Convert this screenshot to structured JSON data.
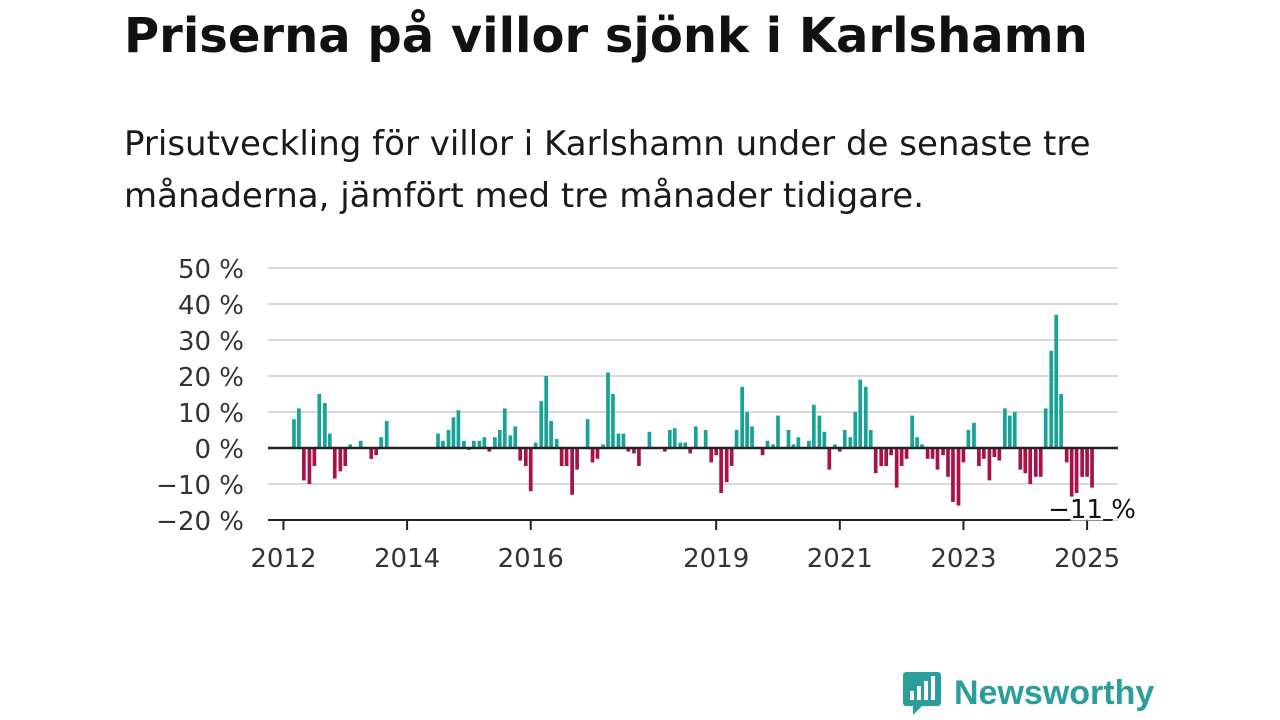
{
  "header": {
    "title": "Priserna på villor sjönk i Karlshamn",
    "subtitle": "Prisutveckling för villor i Karlshamn under de senaste tre månaderna, jämfört med tre månader tidigare."
  },
  "brand": {
    "name": "Newsworthy",
    "icon": "newsworthy-logo-icon",
    "color": "#2a9e9a"
  },
  "colors": {
    "positive": "#17a398",
    "negative": "#a8124a",
    "grid": "#d9d9d9",
    "axis": "#222222"
  },
  "chart_data": {
    "type": "bar",
    "title": "Priserna på villor sjönk i Karlshamn",
    "ylim": [
      -20,
      50
    ],
    "yticks": [
      50,
      40,
      30,
      20,
      10,
      0,
      -10,
      -20
    ],
    "ytick_labels": [
      "50 %",
      "40 %",
      "30 %",
      "20 %",
      "10 %",
      "0 %",
      "−10 %",
      "−20 %"
    ],
    "xticks": [
      2012,
      2014,
      2016,
      2019,
      2021,
      2023,
      2025
    ],
    "xlim": [
      2011.75,
      2025.5
    ],
    "grid": true,
    "annotation": {
      "label": "−11 %",
      "target": "last"
    },
    "points": [
      [
        2012.17,
        8
      ],
      [
        2012.25,
        11
      ],
      [
        2012.33,
        -9
      ],
      [
        2012.42,
        -10
      ],
      [
        2012.5,
        -5
      ],
      [
        2012.58,
        15
      ],
      [
        2012.67,
        12.5
      ],
      [
        2012.75,
        4
      ],
      [
        2012.83,
        -8.5
      ],
      [
        2012.92,
        -6.5
      ],
      [
        2013.0,
        -5
      ],
      [
        2013.08,
        1
      ],
      [
        2013.25,
        2
      ],
      [
        2013.42,
        -3
      ],
      [
        2013.5,
        -2
      ],
      [
        2013.58,
        3
      ],
      [
        2013.67,
        7.5
      ],
      [
        2014.5,
        4
      ],
      [
        2014.58,
        2
      ],
      [
        2014.67,
        5
      ],
      [
        2014.75,
        8.5
      ],
      [
        2014.83,
        10.5
      ],
      [
        2014.92,
        2
      ],
      [
        2015.0,
        -0.5
      ],
      [
        2015.08,
        2
      ],
      [
        2015.17,
        2
      ],
      [
        2015.25,
        3
      ],
      [
        2015.33,
        -1
      ],
      [
        2015.42,
        3
      ],
      [
        2015.5,
        5
      ],
      [
        2015.58,
        11
      ],
      [
        2015.67,
        3.5
      ],
      [
        2015.75,
        6
      ],
      [
        2015.83,
        -3.5
      ],
      [
        2015.92,
        -5
      ],
      [
        2016.0,
        -12
      ],
      [
        2016.08,
        1.5
      ],
      [
        2016.17,
        13
      ],
      [
        2016.25,
        20
      ],
      [
        2016.33,
        7.5
      ],
      [
        2016.42,
        2.5
      ],
      [
        2016.5,
        -5
      ],
      [
        2016.58,
        -5
      ],
      [
        2016.67,
        -13
      ],
      [
        2016.75,
        -6
      ],
      [
        2016.92,
        8
      ],
      [
        2017.0,
        -4
      ],
      [
        2017.08,
        -3
      ],
      [
        2017.17,
        1
      ],
      [
        2017.25,
        21
      ],
      [
        2017.33,
        15
      ],
      [
        2017.42,
        4
      ],
      [
        2017.5,
        4
      ],
      [
        2017.58,
        -1
      ],
      [
        2017.67,
        -1.5
      ],
      [
        2017.75,
        -5
      ],
      [
        2017.92,
        4.5
      ],
      [
        2018.17,
        -1
      ],
      [
        2018.25,
        5
      ],
      [
        2018.33,
        5.5
      ],
      [
        2018.42,
        1.5
      ],
      [
        2018.5,
        1.5
      ],
      [
        2018.58,
        -1.5
      ],
      [
        2018.67,
        6
      ],
      [
        2018.83,
        5
      ],
      [
        2018.92,
        -4
      ],
      [
        2019.0,
        -2
      ],
      [
        2019.08,
        -12.5
      ],
      [
        2019.17,
        -9.5
      ],
      [
        2019.25,
        -5
      ],
      [
        2019.33,
        5
      ],
      [
        2019.42,
        17
      ],
      [
        2019.5,
        10
      ],
      [
        2019.58,
        6
      ],
      [
        2019.75,
        -2
      ],
      [
        2019.83,
        2
      ],
      [
        2019.92,
        1
      ],
      [
        2020.0,
        9
      ],
      [
        2020.17,
        5
      ],
      [
        2020.25,
        1
      ],
      [
        2020.33,
        3
      ],
      [
        2020.5,
        2
      ],
      [
        2020.58,
        12
      ],
      [
        2020.67,
        9
      ],
      [
        2020.75,
        4.5
      ],
      [
        2020.83,
        -6
      ],
      [
        2020.92,
        1
      ],
      [
        2021.0,
        -1
      ],
      [
        2021.08,
        5
      ],
      [
        2021.17,
        3
      ],
      [
        2021.25,
        10
      ],
      [
        2021.33,
        19
      ],
      [
        2021.42,
        17
      ],
      [
        2021.5,
        5
      ],
      [
        2021.58,
        -7
      ],
      [
        2021.67,
        -5
      ],
      [
        2021.75,
        -5
      ],
      [
        2021.83,
        -2
      ],
      [
        2021.92,
        -11
      ],
      [
        2022.0,
        -5
      ],
      [
        2022.08,
        -3
      ],
      [
        2022.17,
        9
      ],
      [
        2022.25,
        3
      ],
      [
        2022.33,
        1
      ],
      [
        2022.42,
        -3
      ],
      [
        2022.5,
        -3
      ],
      [
        2022.58,
        -6
      ],
      [
        2022.67,
        -2
      ],
      [
        2022.75,
        -8
      ],
      [
        2022.83,
        -15
      ],
      [
        2022.92,
        -16
      ],
      [
        2023.0,
        -4
      ],
      [
        2023.08,
        5
      ],
      [
        2023.17,
        7
      ],
      [
        2023.25,
        -5
      ],
      [
        2023.33,
        -3
      ],
      [
        2023.42,
        -9
      ],
      [
        2023.5,
        -2.5
      ],
      [
        2023.58,
        -3.5
      ],
      [
        2023.67,
        11
      ],
      [
        2023.75,
        9
      ],
      [
        2023.83,
        10
      ],
      [
        2023.92,
        -6
      ],
      [
        2024.0,
        -7
      ],
      [
        2024.08,
        -10
      ],
      [
        2024.17,
        -8
      ],
      [
        2024.25,
        -8
      ],
      [
        2024.33,
        11
      ],
      [
        2024.42,
        27
      ],
      [
        2024.5,
        37
      ],
      [
        2024.58,
        15
      ],
      [
        2024.67,
        -4
      ],
      [
        2024.75,
        -13.5
      ],
      [
        2024.83,
        -12.5
      ],
      [
        2024.92,
        -8
      ],
      [
        2025.0,
        -8
      ],
      [
        2025.08,
        -11
      ]
    ]
  }
}
